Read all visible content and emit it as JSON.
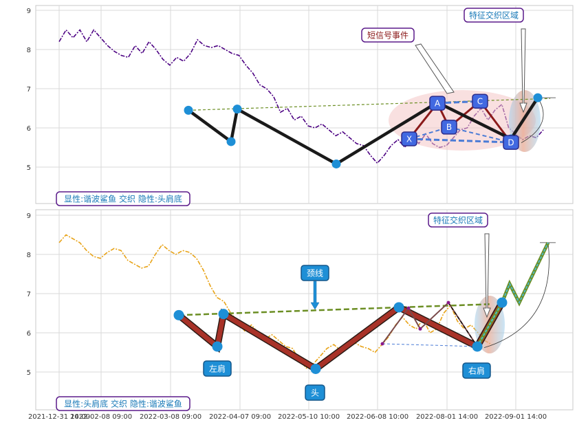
{
  "chart_data": [
    {
      "type": "line",
      "panel": "top",
      "ylim": [
        4.1,
        9.2
      ],
      "yticks": [
        5,
        6,
        7,
        8,
        9
      ],
      "grid": true,
      "xtick_labels": [
        "2021-12-31 14:00",
        "2022-02-08 09:00",
        "2022-03-08 09:00",
        "2022-04-07 09:00",
        "2022-05-10 10:00",
        "2022-06-08 10:00",
        "2022-08-01 14:00",
        "2022-09-01 14:00"
      ],
      "colors": {
        "price": "#4b0082",
        "pattern": "#1a1a1a",
        "neckline": "#6b8e23",
        "xabcd_fill": "#f4c6c6",
        "cross_zone": "#9fd0ee",
        "marker": "#1e8fd6",
        "label_fill": "#4169e1"
      },
      "price_series": {
        "name": "",
        "y": [
          8.2,
          8.5,
          8.3,
          8.5,
          8.2,
          8.5,
          8.3,
          8.1,
          7.95,
          7.85,
          7.8,
          8.1,
          7.9,
          8.2,
          8.0,
          7.75,
          7.6,
          7.8,
          7.7,
          7.9,
          8.25,
          8.1,
          8.05,
          8.1,
          8.0,
          7.9,
          7.85,
          7.6,
          7.4,
          7.1,
          7.0,
          6.8,
          6.4,
          6.5,
          6.2,
          6.3,
          6.05,
          6.0,
          6.1,
          5.95,
          5.8,
          5.9,
          5.75,
          5.6,
          5.55,
          5.3,
          5.1,
          5.3,
          5.55,
          5.7,
          5.5,
          5.85,
          5.6,
          5.85,
          5.6,
          5.5,
          5.55,
          5.75,
          5.95,
          6.0,
          6.3,
          6.5,
          6.2,
          6.45,
          6.6,
          6.0,
          5.85,
          5.7,
          5.8,
          5.75,
          5.95
        ]
      },
      "pattern_points": [
        {
          "y": 6.45
        },
        {
          "y": 5.65
        },
        {
          "y": 6.48
        },
        {
          "y": 5.08
        },
        {
          "y": 6.65
        },
        {
          "y": 5.72
        },
        {
          "y": 6.77
        }
      ],
      "neckline": [
        6.45,
        6.75
      ],
      "xabcd": [
        {
          "label": "X",
          "y": 5.72
        },
        {
          "label": "A",
          "y": 6.63
        },
        {
          "label": "B",
          "y": 6.02
        },
        {
          "label": "C",
          "y": 6.68
        },
        {
          "label": "D",
          "y": 5.63
        }
      ],
      "annotations": {
        "short_signal": "短信号事件",
        "cross_zone": "特征交织区域"
      },
      "caption": "显性:谐波鲨鱼 交织 隐性:头肩底"
    },
    {
      "type": "line",
      "panel": "bottom",
      "ylim": [
        4.1,
        9.2
      ],
      "yticks": [
        5,
        6,
        7,
        8,
        9
      ],
      "grid": true,
      "colors": {
        "price": "#e8a317",
        "pattern_fill": "#a83228",
        "pattern_edge": "#2a1a14",
        "neckline": "#6b8e23",
        "marker": "#1e8fd6",
        "projection": "#6b8e23",
        "projection_inner": "#4db8c9"
      },
      "price_series": {
        "name": "",
        "y": [
          8.3,
          8.5,
          8.4,
          8.3,
          8.1,
          7.95,
          7.9,
          8.05,
          8.15,
          8.1,
          7.85,
          7.75,
          7.65,
          7.7,
          8.0,
          8.25,
          8.1,
          8.0,
          8.1,
          8.05,
          7.9,
          7.6,
          7.2,
          6.9,
          6.8,
          6.5,
          6.3,
          6.05,
          6.2,
          6.0,
          5.85,
          5.95,
          5.8,
          5.65,
          5.6,
          5.3,
          5.1,
          5.2,
          5.4,
          5.6,
          5.7,
          5.55,
          5.6,
          5.75,
          5.65,
          5.6,
          5.5,
          5.7,
          5.9,
          6.2,
          6.4,
          6.2,
          6.1,
          6.35,
          6.0,
          6.1,
          6.5,
          6.7,
          6.3,
          6.1,
          6.2,
          6.0,
          5.8,
          5.7
        ]
      },
      "pattern_points": [
        {
          "label": "左肩",
          "y": 6.45
        },
        {
          "label": "",
          "y": 5.65
        },
        {
          "label": "",
          "y": 6.48
        },
        {
          "label": "头",
          "y": 5.08
        },
        {
          "label": "",
          "y": 6.65
        },
        {
          "label": "右肩",
          "y": 5.65
        },
        {
          "label": "",
          "y": 6.77
        }
      ],
      "neckline": [
        6.45,
        6.73
      ],
      "projection": [
        5.65,
        6.77,
        7.25,
        6.77,
        8.3
      ],
      "annotations": {
        "neck": "颈线",
        "left_shoulder": "左肩",
        "head": "头",
        "right_shoulder": "右肩",
        "cross_zone": "特征交织区域"
      },
      "caption": "显性:头肩底 交织 隐性:谐波鲨鱼"
    }
  ]
}
